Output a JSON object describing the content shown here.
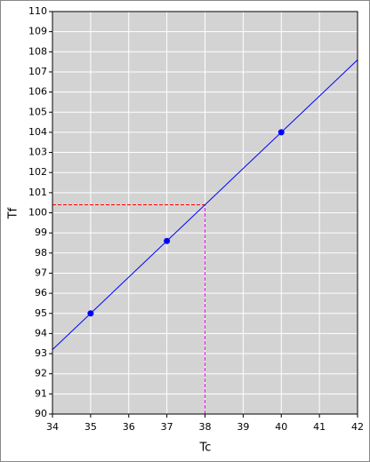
{
  "chart_data": {
    "type": "line",
    "xlabel": "Tc",
    "ylabel": "Tf",
    "xlim": [
      34,
      42
    ],
    "ylim": [
      90,
      110
    ],
    "xticks": [
      34,
      35,
      36,
      37,
      38,
      39,
      40,
      41,
      42
    ],
    "yticks": [
      90,
      91,
      92,
      93,
      94,
      95,
      96,
      97,
      98,
      99,
      100,
      101,
      102,
      103,
      104,
      105,
      106,
      107,
      108,
      109,
      110
    ],
    "grid": true,
    "background": "#d3d3d3",
    "grid_color": "#ffffff",
    "series": [
      {
        "style": "line",
        "color": "#0000ff",
        "x": [
          34,
          42
        ],
        "values": [
          93.2,
          107.6
        ]
      },
      {
        "style": "markers",
        "color": "#0000ff",
        "x": [
          35,
          37,
          40
        ],
        "values": [
          95,
          98.6,
          104
        ]
      }
    ],
    "guide": {
      "x": 38,
      "y": 100.4,
      "hcolor": "#ff0000",
      "vcolor": "#ff00ff"
    }
  }
}
